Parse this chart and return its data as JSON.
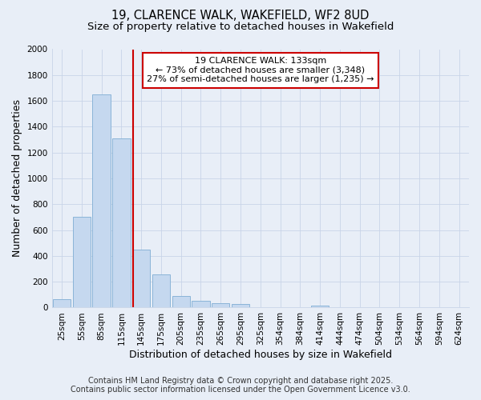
{
  "title_line1": "19, CLARENCE WALK, WAKEFIELD, WF2 8UD",
  "title_line2": "Size of property relative to detached houses in Wakefield",
  "xlabel": "Distribution of detached houses by size in Wakefield",
  "ylabel": "Number of detached properties",
  "categories": [
    "25sqm",
    "55sqm",
    "85sqm",
    "115sqm",
    "145sqm",
    "175sqm",
    "205sqm",
    "235sqm",
    "265sqm",
    "295sqm",
    "325sqm",
    "354sqm",
    "384sqm",
    "414sqm",
    "444sqm",
    "474sqm",
    "504sqm",
    "534sqm",
    "564sqm",
    "594sqm",
    "624sqm"
  ],
  "values": [
    65,
    700,
    1650,
    1310,
    450,
    255,
    90,
    55,
    35,
    25,
    0,
    0,
    0,
    15,
    0,
    0,
    0,
    0,
    0,
    0,
    0
  ],
  "bar_color": "#c5d8ef",
  "bar_edge_color": "#8ab4d8",
  "annotation_line1": "19 CLARENCE WALK: 133sqm",
  "annotation_line2": "← 73% of detached houses are smaller (3,348)",
  "annotation_line3": "27% of semi-detached houses are larger (1,235) →",
  "annotation_box_color": "#ffffff",
  "annotation_box_edge": "#cc0000",
  "red_line_color": "#cc0000",
  "ylim": [
    0,
    2000
  ],
  "yticks": [
    0,
    200,
    400,
    600,
    800,
    1000,
    1200,
    1400,
    1600,
    1800,
    2000
  ],
  "grid_color": "#c8d4e8",
  "background_color": "#e8eef7",
  "plot_bg_color": "#e8eef7",
  "footer_line1": "Contains HM Land Registry data © Crown copyright and database right 2025.",
  "footer_line2": "Contains public sector information licensed under the Open Government Licence v3.0.",
  "title_fontsize": 10.5,
  "subtitle_fontsize": 9.5,
  "tick_fontsize": 7.5,
  "label_fontsize": 9,
  "annotation_fontsize": 8,
  "footer_fontsize": 7
}
